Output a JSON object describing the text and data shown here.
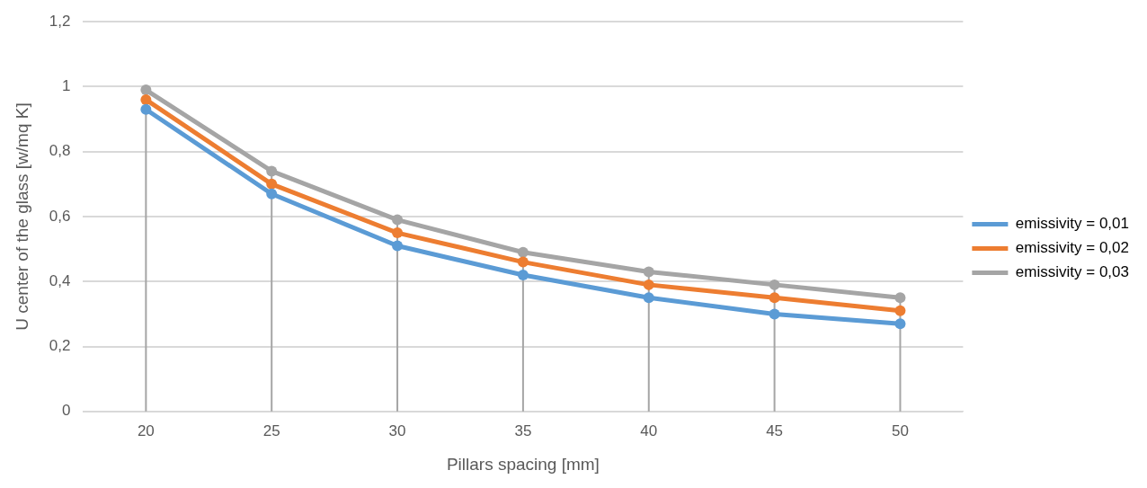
{
  "chart_data": {
    "type": "line",
    "xlabel": "Pillars spacing [mm]",
    "ylabel": "U center of the glass [w/mq K]",
    "categories": [
      "20",
      "25",
      "30",
      "35",
      "40",
      "45",
      "50"
    ],
    "series": [
      {
        "name": "emissivity = 0,01",
        "color": "#5b9bd5",
        "values": [
          0.93,
          0.67,
          0.51,
          0.42,
          0.35,
          0.3,
          0.27
        ]
      },
      {
        "name": "emissivity = 0,02",
        "color": "#ed7d31",
        "values": [
          0.96,
          0.7,
          0.55,
          0.46,
          0.39,
          0.35,
          0.31
        ]
      },
      {
        "name": "emissivity = 0,03",
        "color": "#a5a5a5",
        "values": [
          0.99,
          0.74,
          0.59,
          0.49,
          0.43,
          0.39,
          0.35
        ],
        "errors": [
          [
            0,
            0.99
          ],
          [
            0,
            0.74
          ],
          [
            0,
            0.59
          ],
          [
            0,
            0.49
          ],
          [
            0,
            0.43
          ],
          [
            0,
            0.39
          ],
          [
            0,
            0.35
          ]
        ]
      }
    ],
    "ylim": [
      0,
      1.2
    ],
    "yticks": [
      0,
      {
        "value": 0.2,
        "label": "0,2"
      },
      {
        "value": 0.4,
        "label": "0,4"
      },
      {
        "value": 0.6,
        "label": "0,6"
      },
      {
        "value": 0.8,
        "label": "0,8"
      },
      1,
      {
        "value": 1.2,
        "label": "1,2"
      }
    ],
    "grid": "y",
    "legend": "right",
    "marker": "circle",
    "line_style": "solid"
  }
}
